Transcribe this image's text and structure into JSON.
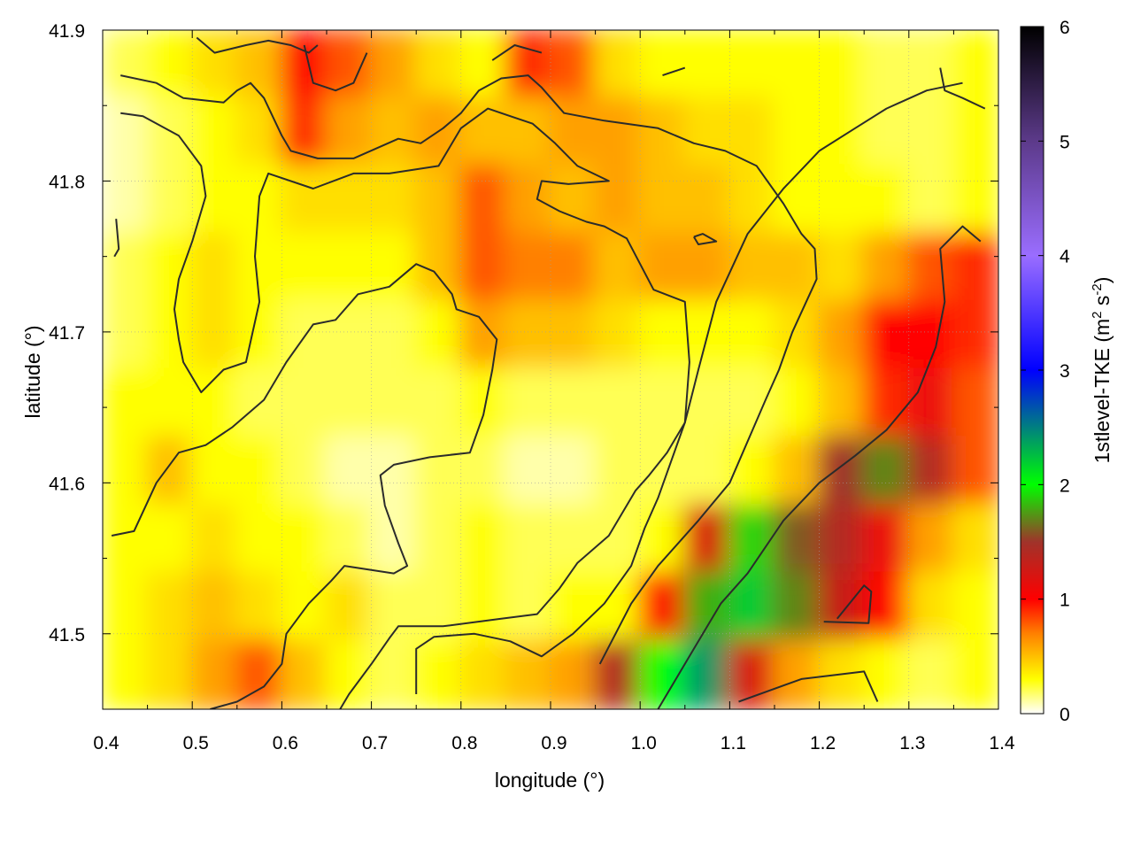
{
  "chart_data": {
    "type": "heatmap",
    "title": "",
    "xlabel": "longitude (°)",
    "ylabel": "latitude (°)",
    "colorbar_label": "1stlevel-TKE (m² s⁻²)",
    "colorbar_label_main": "1stlevel-TKE (m",
    "colorbar_label_sup1": "2",
    "colorbar_label_mid": " s",
    "colorbar_label_sup2": "-2",
    "colorbar_label_end": ")",
    "xlim": [
      0.4,
      1.4
    ],
    "ylim": [
      41.45,
      41.9
    ],
    "clim": [
      0,
      6
    ],
    "x_ticks": [
      0.4,
      0.5,
      0.6,
      0.7,
      0.8,
      0.9,
      1.0,
      1.1,
      1.2,
      1.3,
      1.4
    ],
    "x_tick_labels": [
      "0.4",
      "0.5",
      "0.6",
      "0.7",
      "0.8",
      "0.9",
      "1.0",
      "1.1",
      "1.2",
      "1.3",
      "1.4"
    ],
    "y_ticks": [
      41.5,
      41.6,
      41.7,
      41.8,
      41.9
    ],
    "y_tick_labels": [
      "41.5",
      "41.6",
      "41.7",
      "41.8",
      "41.9"
    ],
    "colorbar_ticks": [
      0,
      1,
      2,
      3,
      4,
      5,
      6
    ],
    "colorbar_tick_labels": [
      "0",
      "1",
      "2",
      "3",
      "4",
      "5",
      "6"
    ],
    "colormap": [
      {
        "v": 0.0,
        "color": "#ffffff"
      },
      {
        "v": 0.3,
        "color": "#ffff00"
      },
      {
        "v": 0.7,
        "color": "#ff8000"
      },
      {
        "v": 1.0,
        "color": "#ff0000"
      },
      {
        "v": 1.5,
        "color": "#a0332a"
      },
      {
        "v": 2.0,
        "color": "#00ff00"
      },
      {
        "v": 3.0,
        "color": "#0000ff"
      },
      {
        "v": 4.0,
        "color": "#9a6dff"
      },
      {
        "v": 5.0,
        "color": "#5c3a8a"
      },
      {
        "v": 6.0,
        "color": "#000000"
      }
    ],
    "grid": true,
    "tke_field": {
      "nx": 20,
      "ny": 10,
      "lon": [
        0.425,
        0.475,
        0.525,
        0.575,
        0.625,
        0.675,
        0.725,
        0.775,
        0.825,
        0.875,
        0.925,
        0.975,
        1.025,
        1.075,
        1.125,
        1.175,
        1.225,
        1.275,
        1.325,
        1.375
      ],
      "lat": [
        41.8775,
        41.8325,
        41.7875,
        41.7425,
        41.6975,
        41.6525,
        41.6075,
        41.5625,
        41.5175,
        41.4725
      ],
      "values": [
        [
          0.2,
          0.3,
          0.4,
          0.5,
          1.0,
          0.8,
          0.6,
          0.4,
          0.3,
          0.9,
          0.8,
          0.4,
          0.3,
          0.3,
          0.3,
          0.3,
          0.3,
          0.2,
          0.2,
          0.3
        ],
        [
          0.1,
          0.2,
          0.3,
          0.4,
          0.9,
          0.6,
          0.5,
          0.6,
          0.5,
          0.5,
          0.6,
          0.6,
          0.5,
          0.4,
          0.4,
          0.3,
          0.3,
          0.2,
          0.2,
          0.3
        ],
        [
          0.1,
          0.2,
          0.3,
          0.3,
          0.4,
          0.4,
          0.4,
          0.5,
          0.8,
          0.6,
          0.5,
          0.6,
          0.5,
          0.5,
          0.4,
          0.3,
          0.3,
          0.3,
          0.2,
          0.3
        ],
        [
          0.2,
          0.3,
          0.4,
          0.3,
          0.3,
          0.3,
          0.3,
          0.5,
          0.8,
          0.7,
          0.7,
          0.5,
          0.6,
          0.6,
          0.5,
          0.5,
          0.4,
          0.6,
          0.8,
          0.9
        ],
        [
          0.2,
          0.3,
          0.4,
          0.3,
          0.2,
          0.2,
          0.2,
          0.3,
          0.6,
          0.5,
          0.5,
          0.4,
          0.3,
          0.3,
          0.3,
          0.4,
          0.6,
          1.0,
          1.0,
          0.9
        ],
        [
          0.3,
          0.3,
          0.3,
          0.2,
          0.2,
          0.2,
          0.2,
          0.2,
          0.3,
          0.2,
          0.2,
          0.2,
          0.2,
          0.2,
          0.2,
          0.3,
          0.5,
          0.9,
          1.1,
          0.8
        ],
        [
          0.3,
          0.5,
          0.3,
          0.3,
          0.2,
          0.1,
          0.1,
          0.2,
          0.2,
          0.1,
          0.1,
          0.2,
          0.2,
          0.2,
          0.3,
          0.5,
          1.5,
          1.7,
          1.4,
          0.8
        ],
        [
          0.3,
          0.3,
          0.4,
          0.3,
          0.3,
          0.2,
          0.1,
          0.2,
          0.3,
          0.2,
          0.2,
          0.2,
          0.3,
          1.2,
          1.9,
          1.6,
          1.4,
          1.1,
          0.6,
          0.4
        ],
        [
          0.3,
          0.4,
          0.5,
          0.4,
          0.3,
          0.4,
          0.2,
          0.2,
          0.3,
          0.2,
          0.3,
          0.3,
          1.0,
          1.8,
          2.2,
          1.7,
          1.3,
          1.0,
          0.4,
          0.3
        ],
        [
          0.3,
          0.4,
          0.6,
          0.8,
          0.5,
          0.3,
          0.2,
          0.3,
          0.4,
          0.5,
          0.6,
          1.4,
          2.0,
          2.4,
          1.2,
          0.6,
          0.4,
          0.3,
          0.2,
          0.3
        ]
      ]
    },
    "contours": [
      [
        [
          0.42,
          41.87
        ],
        [
          0.46,
          41.865
        ],
        [
          0.49,
          41.855
        ],
        [
          0.535,
          41.852
        ],
        [
          0.55,
          41.86
        ],
        [
          0.565,
          41.865
        ],
        [
          0.58,
          41.855
        ],
        [
          0.6,
          41.83
        ],
        [
          0.61,
          41.82
        ],
        [
          0.64,
          41.815
        ],
        [
          0.68,
          41.815
        ],
        [
          0.73,
          41.828
        ],
        [
          0.755,
          41.825
        ],
        [
          0.78,
          41.835
        ],
        [
          0.8,
          41.845
        ],
        [
          0.82,
          41.86
        ],
        [
          0.845,
          41.868
        ],
        [
          0.875,
          41.87
        ],
        [
          0.89,
          41.862
        ],
        [
          0.915,
          41.845
        ],
        [
          0.96,
          41.84
        ],
        [
          1.02,
          41.835
        ],
        [
          1.06,
          41.825
        ],
        [
          1.095,
          41.82
        ],
        [
          1.13,
          41.81
        ],
        [
          1.16,
          41.785
        ],
        [
          1.18,
          41.765
        ],
        [
          1.195,
          41.755
        ],
        [
          1.197,
          41.735
        ],
        [
          1.17,
          41.7
        ],
        [
          1.155,
          41.675
        ],
        [
          1.14,
          41.655
        ],
        [
          1.1,
          41.6
        ],
        [
          1.065,
          41.575
        ],
        [
          1.02,
          41.545
        ],
        [
          0.99,
          41.52
        ],
        [
          0.955,
          41.48
        ]
      ],
      [
        [
          0.42,
          41.845
        ],
        [
          0.445,
          41.843
        ],
        [
          0.485,
          41.83
        ],
        [
          0.51,
          41.81
        ],
        [
          0.515,
          41.79
        ],
        [
          0.5,
          41.76
        ],
        [
          0.485,
          41.735
        ],
        [
          0.48,
          41.715
        ],
        [
          0.485,
          41.695
        ],
        [
          0.49,
          41.68
        ],
        [
          0.51,
          41.66
        ],
        [
          0.535,
          41.675
        ],
        [
          0.56,
          41.68
        ],
        [
          0.575,
          41.72
        ],
        [
          0.57,
          41.75
        ],
        [
          0.575,
          41.79
        ],
        [
          0.585,
          41.805
        ],
        [
          0.635,
          41.795
        ],
        [
          0.68,
          41.805
        ],
        [
          0.72,
          41.805
        ],
        [
          0.775,
          41.81
        ],
        [
          0.8,
          41.835
        ],
        [
          0.83,
          41.848
        ],
        [
          0.855,
          41.843
        ],
        [
          0.88,
          41.838
        ],
        [
          0.905,
          41.825
        ],
        [
          0.93,
          41.81
        ],
        [
          0.965,
          41.8
        ],
        [
          0.92,
          41.798
        ],
        [
          0.89,
          41.8
        ],
        [
          0.885,
          41.788
        ],
        [
          0.91,
          41.78
        ],
        [
          0.94,
          41.773
        ],
        [
          0.96,
          41.77
        ],
        [
          0.985,
          41.762
        ],
        [
          1.0,
          41.745
        ],
        [
          1.015,
          41.728
        ],
        [
          1.05,
          41.72
        ],
        [
          1.055,
          41.68
        ],
        [
          1.05,
          41.64
        ],
        [
          1.03,
          41.62
        ],
        [
          1.01,
          41.605
        ],
        [
          0.995,
          41.595
        ],
        [
          0.98,
          41.58
        ],
        [
          0.965,
          41.565
        ],
        [
          0.93,
          41.547
        ],
        [
          0.91,
          41.53
        ],
        [
          0.885,
          41.513
        ],
        [
          0.845,
          41.51
        ],
        [
          0.78,
          41.505
        ],
        [
          0.73,
          41.505
        ],
        [
          0.72,
          41.497
        ],
        [
          0.7,
          41.48
        ],
        [
          0.675,
          41.46
        ],
        [
          0.655,
          41.44
        ]
      ],
      [
        [
          0.41,
          41.565
        ],
        [
          0.435,
          41.568
        ],
        [
          0.46,
          41.6
        ],
        [
          0.485,
          41.62
        ],
        [
          0.515,
          41.625
        ],
        [
          0.545,
          41.637
        ],
        [
          0.58,
          41.655
        ],
        [
          0.605,
          41.68
        ],
        [
          0.635,
          41.705
        ],
        [
          0.66,
          41.708
        ],
        [
          0.685,
          41.725
        ],
        [
          0.72,
          41.73
        ],
        [
          0.75,
          41.745
        ],
        [
          0.77,
          41.74
        ],
        [
          0.79,
          41.725
        ],
        [
          0.795,
          41.715
        ],
        [
          0.82,
          41.71
        ],
        [
          0.84,
          41.695
        ],
        [
          0.835,
          41.675
        ],
        [
          0.825,
          41.645
        ],
        [
          0.81,
          41.62
        ],
        [
          0.765,
          41.617
        ],
        [
          0.725,
          41.612
        ],
        [
          0.71,
          41.605
        ],
        [
          0.715,
          41.585
        ],
        [
          0.73,
          41.56
        ],
        [
          0.74,
          41.545
        ],
        [
          0.725,
          41.54
        ],
        [
          0.67,
          41.545
        ],
        [
          0.655,
          41.535
        ],
        [
          0.63,
          41.52
        ],
        [
          0.605,
          41.5
        ],
        [
          0.6,
          41.48
        ],
        [
          0.58,
          41.465
        ],
        [
          0.55,
          41.455
        ],
        [
          0.52,
          41.45
        ]
      ],
      [
        [
          0.75,
          41.46
        ],
        [
          0.75,
          41.49
        ],
        [
          0.77,
          41.498
        ],
        [
          0.815,
          41.5
        ],
        [
          0.855,
          41.495
        ],
        [
          0.89,
          41.485
        ],
        [
          0.925,
          41.5
        ],
        [
          0.96,
          41.52
        ],
        [
          0.99,
          41.545
        ],
        [
          1.005,
          41.57
        ],
        [
          1.02,
          41.59
        ],
        [
          1.035,
          41.615
        ],
        [
          1.05,
          41.64
        ],
        [
          1.065,
          41.675
        ],
        [
          1.085,
          41.72
        ],
        [
          1.12,
          41.765
        ],
        [
          1.16,
          41.795
        ],
        [
          1.2,
          41.82
        ],
        [
          1.24,
          41.835
        ],
        [
          1.275,
          41.848
        ],
        [
          1.32,
          41.86
        ],
        [
          1.36,
          41.865
        ]
      ],
      [
        [
          1.02,
          41.45
        ],
        [
          1.06,
          41.49
        ],
        [
          1.09,
          41.52
        ],
        [
          1.12,
          41.54
        ],
        [
          1.16,
          41.575
        ],
        [
          1.2,
          41.6
        ],
        [
          1.24,
          41.618
        ],
        [
          1.275,
          41.635
        ],
        [
          1.31,
          41.66
        ],
        [
          1.33,
          41.69
        ],
        [
          1.34,
          41.72
        ],
        [
          1.335,
          41.755
        ],
        [
          1.36,
          41.77
        ],
        [
          1.38,
          41.76
        ]
      ],
      [
        [
          1.06,
          41.763
        ],
        [
          1.07,
          41.765
        ],
        [
          1.085,
          41.76
        ],
        [
          1.065,
          41.758
        ],
        [
          1.06,
          41.763
        ]
      ],
      [
        [
          1.205,
          41.508
        ],
        [
          1.255,
          41.507
        ],
        [
          1.258,
          41.528
        ],
        [
          1.25,
          41.532
        ],
        [
          1.22,
          41.51
        ]
      ],
      [
        [
          1.11,
          41.455
        ],
        [
          1.18,
          41.47
        ],
        [
          1.25,
          41.475
        ],
        [
          1.265,
          41.455
        ]
      ],
      [
        [
          0.505,
          41.895
        ],
        [
          0.525,
          41.885
        ],
        [
          0.56,
          41.89
        ],
        [
          0.585,
          41.893
        ],
        [
          0.61,
          41.89
        ],
        [
          0.63,
          41.885
        ],
        [
          0.64,
          41.89
        ]
      ],
      [
        [
          0.835,
          41.88
        ],
        [
          0.86,
          41.89
        ],
        [
          0.89,
          41.885
        ]
      ],
      [
        [
          1.335,
          41.875
        ],
        [
          1.34,
          41.86
        ],
        [
          1.36,
          41.855
        ],
        [
          1.385,
          41.848
        ]
      ],
      [
        [
          0.415,
          41.775
        ],
        [
          0.418,
          41.755
        ],
        [
          0.413,
          41.75
        ]
      ],
      [
        [
          0.625,
          41.89
        ],
        [
          0.635,
          41.865
        ],
        [
          0.66,
          41.86
        ],
        [
          0.68,
          41.865
        ],
        [
          0.695,
          41.885
        ]
      ],
      [
        [
          1.025,
          41.87
        ],
        [
          1.05,
          41.875
        ]
      ]
    ]
  }
}
